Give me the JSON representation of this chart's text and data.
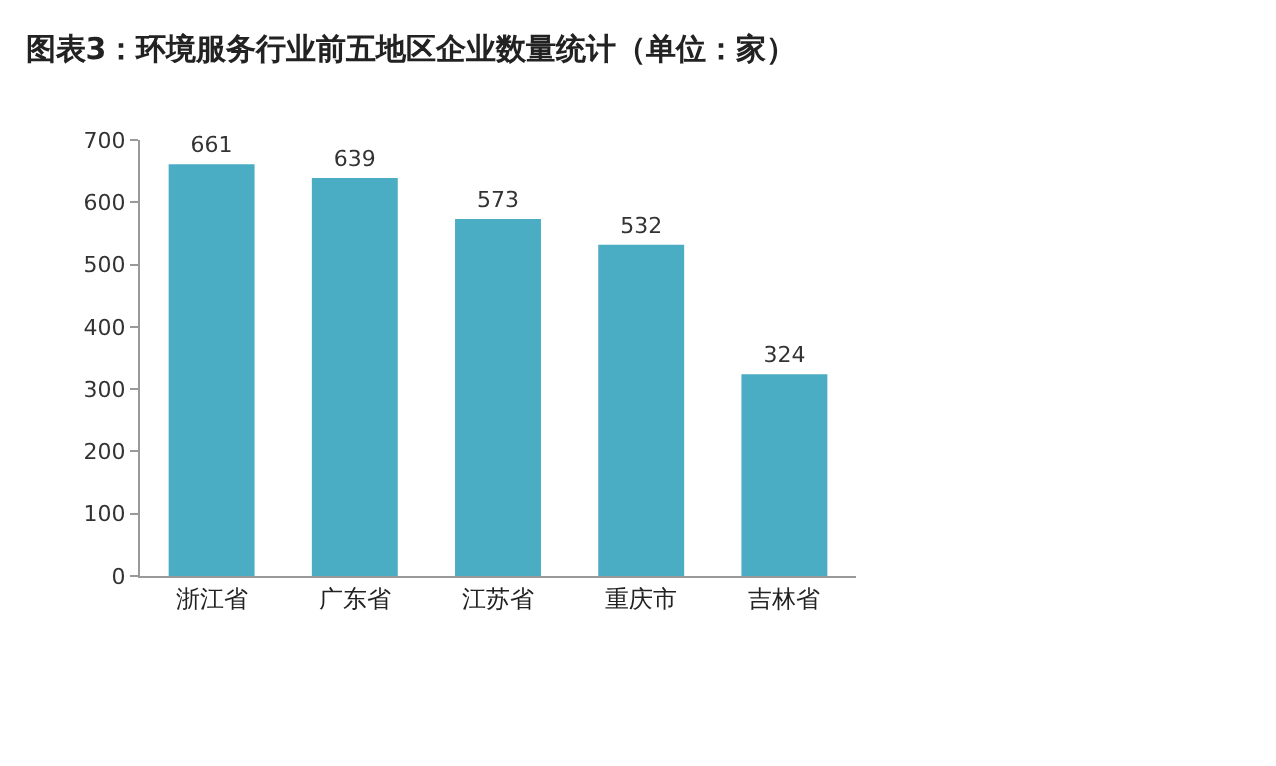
{
  "chart_data": {
    "type": "bar",
    "title": "图表3：环境服务行业前五地区企业数量统计（单位：家）",
    "categories": [
      "浙江省",
      "广东省",
      "江苏省",
      "重庆市",
      "吉林省"
    ],
    "values": [
      661,
      639,
      573,
      532,
      324
    ],
    "color": "#4badc4",
    "ylim": [
      0,
      700
    ],
    "yticks": [
      0,
      100,
      200,
      300,
      400,
      500,
      600,
      700
    ],
    "data_labels": true,
    "grid": false
  }
}
